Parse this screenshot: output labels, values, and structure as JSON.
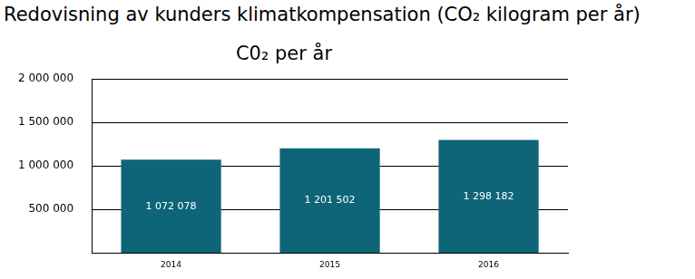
{
  "chart_data": {
    "type": "bar",
    "title": "Redovisning av kunders klimatkompensation (CO₂ kilogram per år)",
    "subtitle": "C0₂ per år",
    "categories": [
      "2014",
      "2015",
      "2016"
    ],
    "values": [
      1072078,
      1201502,
      1298182
    ],
    "value_labels": [
      "1 072 078",
      "1 201 502",
      "1 298 182"
    ],
    "color": "#0e6578",
    "ylim": [
      0,
      2000000
    ],
    "yticks": [
      {
        "value": 500000,
        "label": "500 000"
      },
      {
        "value": 1000000,
        "label": "1 000 000"
      },
      {
        "value": 1500000,
        "label": "1 500 000"
      },
      {
        "value": 2000000,
        "label": "2 000 000"
      }
    ],
    "grid": true,
    "data_labels": true
  }
}
